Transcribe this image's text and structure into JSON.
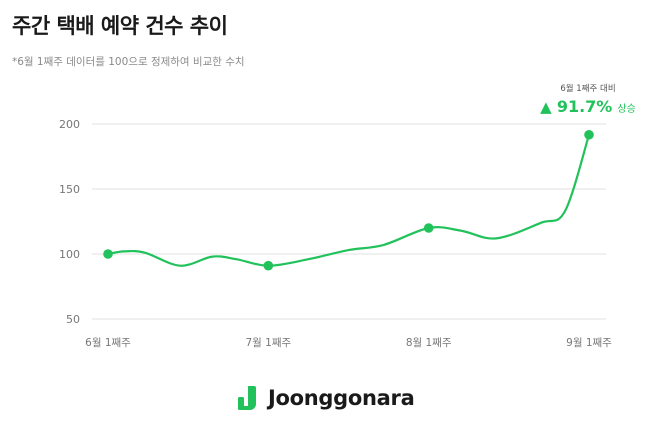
{
  "title": "주간 택배 예약 건수 추이",
  "subtitle": "*6월 1째주 데이터를 100으로 정제하여 비교한 수치",
  "callout": {
    "caption": "6월 1째주 대비",
    "arrow": "▲",
    "value": "91.7%",
    "label": "상승"
  },
  "logo": {
    "text": "Joonggonara",
    "color": "#21c25b"
  },
  "chart_data": {
    "type": "line",
    "x_ticks": [
      "6월 1째주",
      "7월 1째주",
      "8월 1째주",
      "9월 1째주"
    ],
    "y_ticks": [
      200,
      150,
      100,
      50
    ],
    "ylim": [
      50,
      200
    ],
    "grid": true,
    "line_color": "#21c25b",
    "markers": [
      {
        "x": 0,
        "y": 100
      },
      {
        "x": 1,
        "y": 91
      },
      {
        "x": 2,
        "y": 120
      },
      {
        "x": 3,
        "y": 191.7
      }
    ],
    "curve": [
      {
        "x": 0,
        "y": 100
      },
      {
        "x": 0.1,
        "y": 102
      },
      {
        "x": 0.23,
        "y": 101
      },
      {
        "x": 0.45,
        "y": 91
      },
      {
        "x": 0.65,
        "y": 98
      },
      {
        "x": 0.8,
        "y": 96
      },
      {
        "x": 1,
        "y": 91
      },
      {
        "x": 1.25,
        "y": 96
      },
      {
        "x": 1.5,
        "y": 103
      },
      {
        "x": 1.72,
        "y": 107
      },
      {
        "x": 2,
        "y": 120
      },
      {
        "x": 2.2,
        "y": 118
      },
      {
        "x": 2.42,
        "y": 112
      },
      {
        "x": 2.7,
        "y": 124
      },
      {
        "x": 2.85,
        "y": 133
      },
      {
        "x": 3,
        "y": 191.7
      }
    ]
  }
}
